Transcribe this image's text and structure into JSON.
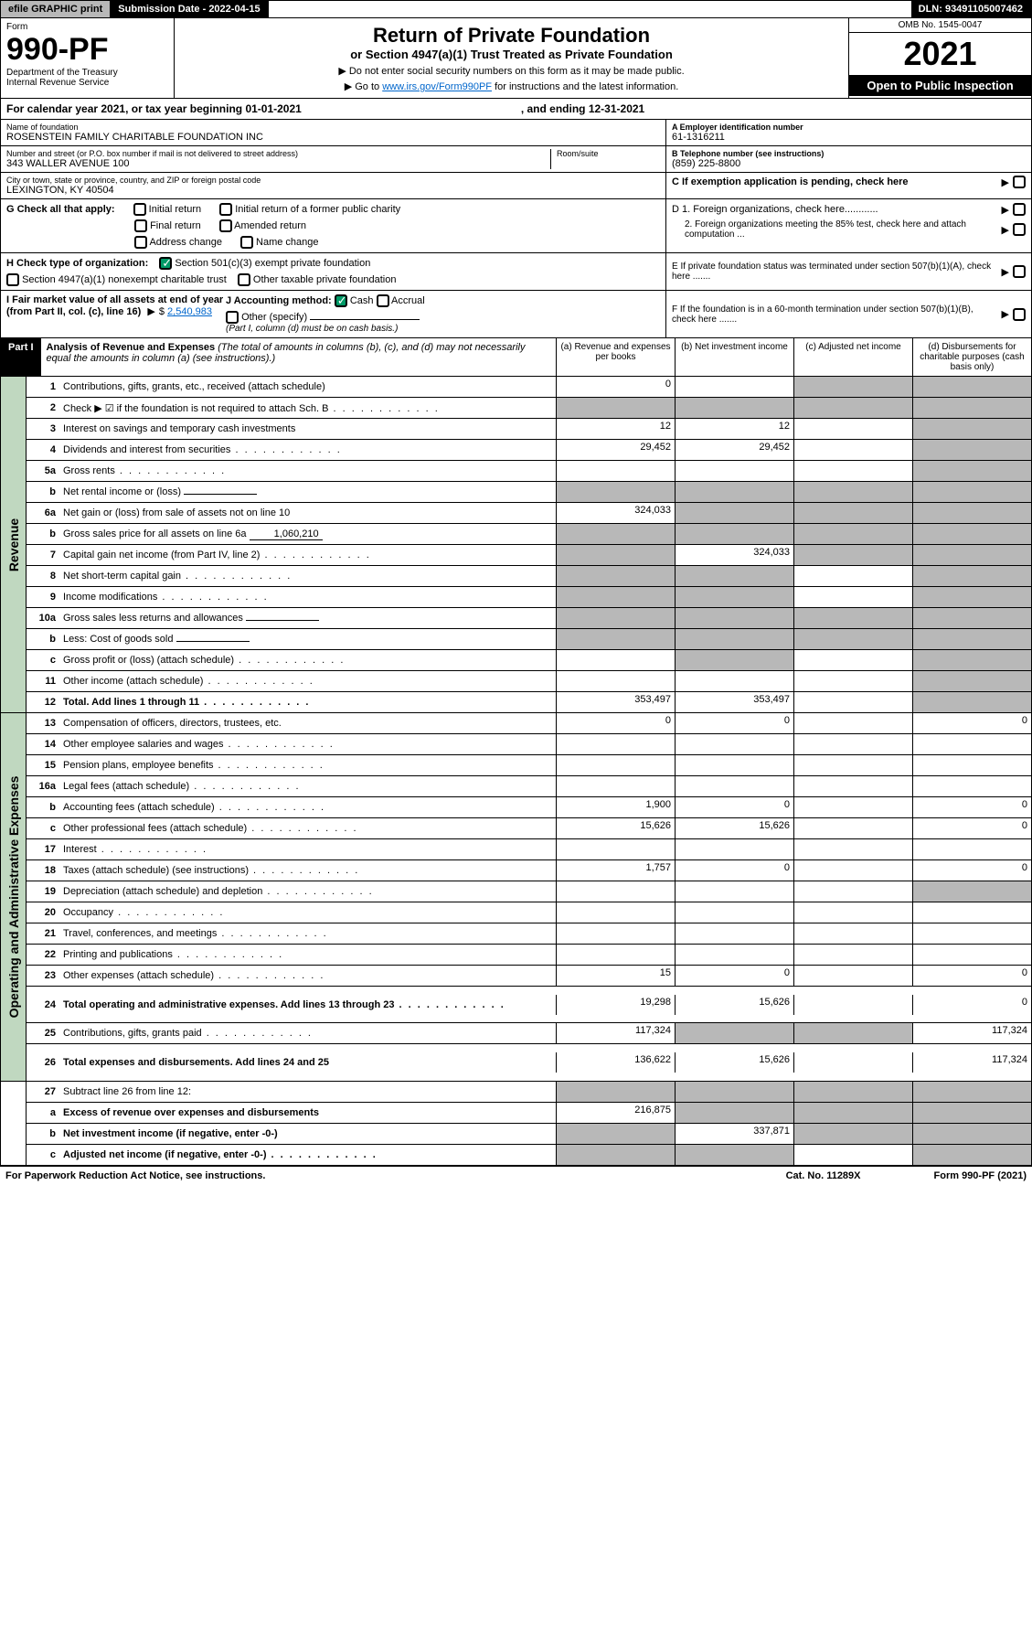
{
  "topbar": {
    "efile": "efile GRAPHIC print",
    "submission": "Submission Date - 2022-04-15",
    "dln": "DLN: 93491105007462"
  },
  "header": {
    "form_label": "Form",
    "form_number": "990-PF",
    "dept": "Department of the Treasury",
    "irs": "Internal Revenue Service",
    "title": "Return of Private Foundation",
    "subtitle": "or Section 4947(a)(1) Trust Treated as Private Foundation",
    "inst1": "▶ Do not enter social security numbers on this form as it may be made public.",
    "inst2_pre": "▶ Go to ",
    "inst2_link": "www.irs.gov/Form990PF",
    "inst2_post": " for instructions and the latest information.",
    "omb": "OMB No. 1545-0047",
    "year": "2021",
    "open": "Open to Public Inspection"
  },
  "calyear": {
    "text": "For calendar year 2021, or tax year beginning 01-01-2021",
    "ending": ", and ending 12-31-2021"
  },
  "foundation": {
    "name_lbl": "Name of foundation",
    "name": "ROSENSTEIN FAMILY CHARITABLE FOUNDATION INC",
    "addr_lbl": "Number and street (or P.O. box number if mail is not delivered to street address)",
    "addr": "343 WALLER AVENUE 100",
    "room_lbl": "Room/suite",
    "city_lbl": "City or town, state or province, country, and ZIP or foreign postal code",
    "city": "LEXINGTON, KY  40504",
    "ein_lbl": "A Employer identification number",
    "ein": "61-1316211",
    "phone_lbl": "B Telephone number (see instructions)",
    "phone": "(859) 225-8800",
    "c_lbl": "C If exemption application is pending, check here"
  },
  "checks": {
    "g_lbl": "G Check all that apply:",
    "g_opts": [
      "Initial return",
      "Initial return of a former public charity",
      "Final return",
      "Amended return",
      "Address change",
      "Name change"
    ],
    "h_lbl": "H Check type of organization:",
    "h1": "Section 501(c)(3) exempt private foundation",
    "h2": "Section 4947(a)(1) nonexempt charitable trust",
    "h3": "Other taxable private foundation",
    "d1": "D 1. Foreign organizations, check here............",
    "d2": "2. Foreign organizations meeting the 85% test, check here and attach computation ...",
    "e": "E  If private foundation status was terminated under section 507(b)(1)(A), check here .......",
    "f": "F  If the foundation is in a 60-month termination under section 507(b)(1)(B), check here ......."
  },
  "ij": {
    "i_lbl": "I Fair market value of all assets at end of year (from Part II, col. (c), line 16)",
    "i_val": "2,540,983",
    "j_lbl": "J Accounting method:",
    "j_cash": "Cash",
    "j_accrual": "Accrual",
    "j_other": "Other (specify)",
    "j_note": "(Part I, column (d) must be on cash basis.)"
  },
  "part1": {
    "label": "Part I",
    "title": "Analysis of Revenue and Expenses",
    "note": "(The total of amounts in columns (b), (c), and (d) may not necessarily equal the amounts in column (a) (see instructions).)",
    "col_a": "(a) Revenue and expenses per books",
    "col_b": "(b) Net investment income",
    "col_c": "(c) Adjusted net income",
    "col_d": "(d) Disbursements for charitable purposes (cash basis only)"
  },
  "revenue_label": "Revenue",
  "expenses_label": "Operating and Administrative Expenses",
  "rows": [
    {
      "n": "1",
      "d": "Contributions, gifts, grants, etc., received (attach schedule)",
      "a": "0",
      "b": "",
      "c": "g",
      "dd": "g"
    },
    {
      "n": "2",
      "d": "Check ▶ ☑ if the foundation is not required to attach Sch. B",
      "a": "g",
      "b": "g",
      "c": "g",
      "dd": "g",
      "dots": true
    },
    {
      "n": "3",
      "d": "Interest on savings and temporary cash investments",
      "a": "12",
      "b": "12",
      "c": "",
      "dd": "g"
    },
    {
      "n": "4",
      "d": "Dividends and interest from securities",
      "a": "29,452",
      "b": "29,452",
      "c": "",
      "dd": "g",
      "dots": true
    },
    {
      "n": "5a",
      "d": "Gross rents",
      "a": "",
      "b": "",
      "c": "",
      "dd": "g",
      "dots": true
    },
    {
      "n": "b",
      "d": "Net rental income or (loss)",
      "a": "g",
      "b": "g",
      "c": "g",
      "dd": "g",
      "inline": ""
    },
    {
      "n": "6a",
      "d": "Net gain or (loss) from sale of assets not on line 10",
      "a": "324,033",
      "b": "g",
      "c": "g",
      "dd": "g"
    },
    {
      "n": "b",
      "d": "Gross sales price for all assets on line 6a",
      "a": "g",
      "b": "g",
      "c": "g",
      "dd": "g",
      "inline": "1,060,210"
    },
    {
      "n": "7",
      "d": "Capital gain net income (from Part IV, line 2)",
      "a": "g",
      "b": "324,033",
      "c": "g",
      "dd": "g",
      "dots": true
    },
    {
      "n": "8",
      "d": "Net short-term capital gain",
      "a": "g",
      "b": "g",
      "c": "",
      "dd": "g",
      "dots": true
    },
    {
      "n": "9",
      "d": "Income modifications",
      "a": "g",
      "b": "g",
      "c": "",
      "dd": "g",
      "dots": true
    },
    {
      "n": "10a",
      "d": "Gross sales less returns and allowances",
      "a": "g",
      "b": "g",
      "c": "g",
      "dd": "g",
      "inline": ""
    },
    {
      "n": "b",
      "d": "Less: Cost of goods sold",
      "a": "g",
      "b": "g",
      "c": "g",
      "dd": "g",
      "inline": "",
      "dots": true
    },
    {
      "n": "c",
      "d": "Gross profit or (loss) (attach schedule)",
      "a": "",
      "b": "g",
      "c": "",
      "dd": "g",
      "dots": true
    },
    {
      "n": "11",
      "d": "Other income (attach schedule)",
      "a": "",
      "b": "",
      "c": "",
      "dd": "g",
      "dots": true
    },
    {
      "n": "12",
      "d": "Total. Add lines 1 through 11",
      "a": "353,497",
      "b": "353,497",
      "c": "",
      "dd": "g",
      "bold": true,
      "dots": true
    }
  ],
  "exp_rows": [
    {
      "n": "13",
      "d": "Compensation of officers, directors, trustees, etc.",
      "a": "0",
      "b": "0",
      "c": "",
      "dd": "0"
    },
    {
      "n": "14",
      "d": "Other employee salaries and wages",
      "a": "",
      "b": "",
      "c": "",
      "dd": "",
      "dots": true
    },
    {
      "n": "15",
      "d": "Pension plans, employee benefits",
      "a": "",
      "b": "",
      "c": "",
      "dd": "",
      "dots": true
    },
    {
      "n": "16a",
      "d": "Legal fees (attach schedule)",
      "a": "",
      "b": "",
      "c": "",
      "dd": "",
      "dots": true
    },
    {
      "n": "b",
      "d": "Accounting fees (attach schedule)",
      "a": "1,900",
      "b": "0",
      "c": "",
      "dd": "0",
      "dots": true
    },
    {
      "n": "c",
      "d": "Other professional fees (attach schedule)",
      "a": "15,626",
      "b": "15,626",
      "c": "",
      "dd": "0",
      "dots": true
    },
    {
      "n": "17",
      "d": "Interest",
      "a": "",
      "b": "",
      "c": "",
      "dd": "",
      "dots": true
    },
    {
      "n": "18",
      "d": "Taxes (attach schedule) (see instructions)",
      "a": "1,757",
      "b": "0",
      "c": "",
      "dd": "0",
      "dots": true
    },
    {
      "n": "19",
      "d": "Depreciation (attach schedule) and depletion",
      "a": "",
      "b": "",
      "c": "",
      "dd": "g",
      "dots": true
    },
    {
      "n": "20",
      "d": "Occupancy",
      "a": "",
      "b": "",
      "c": "",
      "dd": "",
      "dots": true
    },
    {
      "n": "21",
      "d": "Travel, conferences, and meetings",
      "a": "",
      "b": "",
      "c": "",
      "dd": "",
      "dots": true
    },
    {
      "n": "22",
      "d": "Printing and publications",
      "a": "",
      "b": "",
      "c": "",
      "dd": "",
      "dots": true
    },
    {
      "n": "23",
      "d": "Other expenses (attach schedule)",
      "a": "15",
      "b": "0",
      "c": "",
      "dd": "0",
      "dots": true
    },
    {
      "n": "24",
      "d": "Total operating and administrative expenses. Add lines 13 through 23",
      "a": "19,298",
      "b": "15,626",
      "c": "",
      "dd": "0",
      "bold": true,
      "dots": true,
      "tall": true
    },
    {
      "n": "25",
      "d": "Contributions, gifts, grants paid",
      "a": "117,324",
      "b": "g",
      "c": "g",
      "dd": "117,324",
      "dots": true
    },
    {
      "n": "26",
      "d": "Total expenses and disbursements. Add lines 24 and 25",
      "a": "136,622",
      "b": "15,626",
      "c": "",
      "dd": "117,324",
      "bold": true,
      "tall": true
    }
  ],
  "final_rows": [
    {
      "n": "27",
      "d": "Subtract line 26 from line 12:",
      "a": "g",
      "b": "g",
      "c": "g",
      "dd": "g"
    },
    {
      "n": "a",
      "d": "Excess of revenue over expenses and disbursements",
      "a": "216,875",
      "b": "g",
      "c": "g",
      "dd": "g",
      "bold": true
    },
    {
      "n": "b",
      "d": "Net investment income (if negative, enter -0-)",
      "a": "g",
      "b": "337,871",
      "c": "g",
      "dd": "g",
      "bold": true
    },
    {
      "n": "c",
      "d": "Adjusted net income (if negative, enter -0-)",
      "a": "g",
      "b": "g",
      "c": "",
      "dd": "g",
      "bold": true,
      "dots": true
    }
  ],
  "footer": {
    "left": "For Paperwork Reduction Act Notice, see instructions.",
    "mid": "Cat. No. 11289X",
    "right": "Form 990-PF (2021)"
  }
}
